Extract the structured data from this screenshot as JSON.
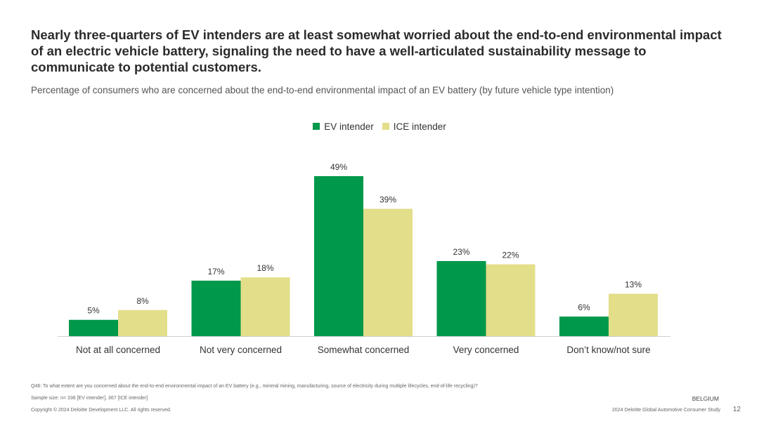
{
  "title": "Nearly three-quarters of EV intenders are at least somewhat worried about the end-to-end environmental impact of an electric vehicle battery, signaling the need to have a well-articulated sustainability message to communicate to potential customers.",
  "subtitle": "Percentage of consumers who are concerned about the end-to-end environmental impact of an EV battery (by future vehicle type intention)",
  "chart_data": {
    "type": "bar",
    "categories": [
      "Not at all concerned",
      "Not very concerned",
      "Somewhat concerned",
      "Very concerned",
      "Don’t know/not sure"
    ],
    "series": [
      {
        "name": "EV intender",
        "color": "#00984a",
        "values": [
          5,
          17,
          49,
          23,
          6
        ],
        "labels": [
          "5%",
          "17%",
          "49%",
          "23%",
          "6%"
        ]
      },
      {
        "name": "ICE intender",
        "color": "#e3de8a",
        "values": [
          8,
          18,
          39,
          22,
          13
        ],
        "labels": [
          "8%",
          "18%",
          "39%",
          "22%",
          "13%"
        ]
      }
    ],
    "title": "",
    "xlabel": "",
    "ylabel": "",
    "ylim": [
      0,
      49
    ],
    "grid": false,
    "legend_position": "top-center"
  },
  "footer": {
    "question": "Q46: To what extent are you concerned about the end-to-end environmental impact of an EV battery (e.g., mineral mining, manufacturing, source of electricity during multiple lifecycles, end-of-life recycling)?",
    "sample": "Sample size: n= 336 [EV intender], 367 [ICE intender]",
    "copyright": "Copyright © 2024 Deloitte Development LLC. All rights reserved.",
    "country": "BELGIUM",
    "study": "2024 Deloitte Global Automotive Consumer Study",
    "page": "12"
  }
}
